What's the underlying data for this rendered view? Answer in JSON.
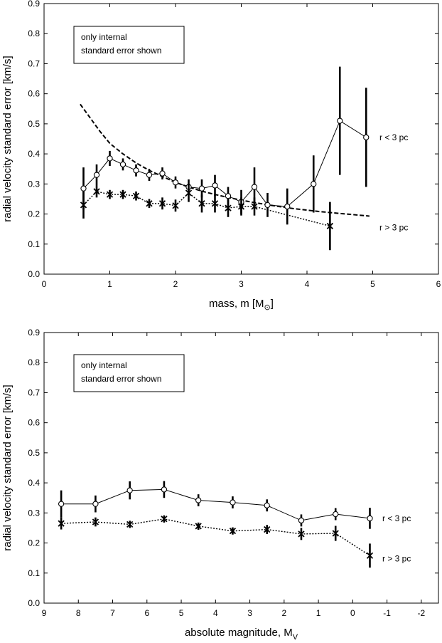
{
  "chart_data": [
    {
      "type": "line",
      "xlabel": "mass, m  [M",
      "xlabel_unit": "⊙",
      "xlabel_close": "]",
      "ylabel": "radial velocity standard error  [km/s]",
      "xlim": [
        0,
        6
      ],
      "ylim": [
        0,
        0.9
      ],
      "x_reversed": false,
      "x_ticks": [
        0,
        1,
        2,
        3,
        4,
        5,
        6
      ],
      "x_tick_labels": [
        "0",
        "1",
        "2",
        "3",
        "4",
        "5",
        "6"
      ],
      "y_ticks": [
        0,
        0.1,
        0.2,
        0.3,
        0.4,
        0.5,
        0.6,
        0.7,
        0.8,
        0.9
      ],
      "y_tick_labels": [
        "0.0",
        "0.1",
        "0.2",
        "0.3",
        "0.4",
        "0.5",
        "0.6",
        "0.7",
        "0.8",
        "0.9"
      ],
      "note_lines": [
        "only internal",
        "standard error shown"
      ],
      "series": [
        {
          "name": "r < 3 pc",
          "marker": "circle",
          "line_style": "solid",
          "x": [
            0.6,
            0.8,
            1.0,
            1.2,
            1.4,
            1.6,
            1.8,
            2.0,
            2.2,
            2.4,
            2.6,
            2.8,
            3.0,
            3.2,
            3.4,
            3.7,
            4.1,
            4.5,
            4.9
          ],
          "y": [
            0.285,
            0.33,
            0.385,
            0.365,
            0.345,
            0.33,
            0.335,
            0.305,
            0.29,
            0.285,
            0.295,
            0.26,
            0.24,
            0.29,
            0.23,
            0.225,
            0.3,
            0.51,
            0.455
          ],
          "err": [
            0.07,
            0.035,
            0.025,
            0.02,
            0.02,
            0.02,
            0.02,
            0.02,
            0.025,
            0.03,
            0.035,
            0.03,
            0.04,
            0.065,
            0.04,
            0.06,
            0.095,
            0.18,
            0.165
          ]
        },
        {
          "name": "r > 3 pc",
          "marker": "asterisk",
          "line_style": "dotted",
          "x": [
            0.6,
            0.8,
            1.0,
            1.2,
            1.4,
            1.6,
            1.8,
            2.0,
            2.2,
            2.4,
            2.6,
            2.8,
            3.0,
            3.2,
            4.35
          ],
          "y": [
            0.23,
            0.275,
            0.265,
            0.265,
            0.26,
            0.235,
            0.235,
            0.228,
            0.27,
            0.235,
            0.235,
            0.22,
            0.225,
            0.225,
            0.16
          ],
          "err": [
            0.045,
            0.02,
            0.015,
            0.015,
            0.015,
            0.015,
            0.02,
            0.02,
            0.03,
            0.03,
            0.03,
            0.03,
            0.03,
            0.03,
            0.08
          ]
        }
      ],
      "fit_curve": {
        "line_style": "dashed",
        "x": [
          0.55,
          0.7,
          0.85,
          1.0,
          1.2,
          1.4,
          1.6,
          1.8,
          2.0,
          2.2,
          2.4,
          2.6,
          2.8,
          3.0,
          3.2,
          3.4,
          3.6,
          3.8,
          4.0,
          4.2,
          4.4,
          4.6,
          4.8,
          4.95
        ],
        "y": [
          0.565,
          0.52,
          0.475,
          0.435,
          0.4,
          0.37,
          0.345,
          0.325,
          0.305,
          0.29,
          0.276,
          0.265,
          0.255,
          0.246,
          0.238,
          0.231,
          0.224,
          0.218,
          0.213,
          0.208,
          0.204,
          0.2,
          0.196,
          0.193
        ]
      }
    },
    {
      "type": "line",
      "xlabel": "absolute magnitude, M",
      "xlabel_sub": "V",
      "ylabel": "radial velocity standard error  [km/s]",
      "xlim": [
        9,
        -2.5
      ],
      "ylim": [
        0,
        0.9
      ],
      "x_reversed": true,
      "x_ticks": [
        9,
        8,
        7,
        6,
        5,
        4,
        3,
        2,
        1,
        0,
        -1,
        -2
      ],
      "x_tick_labels": [
        "9",
        "8",
        "7",
        "6",
        "5",
        "4",
        "3",
        "2",
        "1",
        "0",
        "-1",
        "-2"
      ],
      "y_ticks": [
        0,
        0.1,
        0.2,
        0.3,
        0.4,
        0.5,
        0.6,
        0.7,
        0.8,
        0.9
      ],
      "y_tick_labels": [
        "0.0",
        "0.1",
        "0.2",
        "0.3",
        "0.4",
        "0.5",
        "0.6",
        "0.7",
        "0.8",
        "0.9"
      ],
      "note_lines": [
        "only internal",
        "standard error shown"
      ],
      "series": [
        {
          "name": "r < 3 pc",
          "marker": "circle",
          "line_style": "solid",
          "x": [
            8.5,
            7.5,
            6.5,
            5.5,
            4.5,
            3.5,
            2.5,
            1.5,
            0.5,
            -0.5
          ],
          "y": [
            0.33,
            0.33,
            0.375,
            0.378,
            0.342,
            0.335,
            0.325,
            0.275,
            0.296,
            0.282
          ],
          "err": [
            0.045,
            0.028,
            0.03,
            0.028,
            0.02,
            0.02,
            0.02,
            0.02,
            0.02,
            0.035
          ]
        },
        {
          "name": "r > 3 pc",
          "marker": "asterisk",
          "line_style": "dotted",
          "x": [
            8.5,
            7.5,
            6.5,
            5.5,
            4.5,
            3.5,
            2.5,
            1.5,
            0.5,
            -0.5
          ],
          "y": [
            0.265,
            0.27,
            0.262,
            0.28,
            0.256,
            0.24,
            0.245,
            0.23,
            0.232,
            0.158
          ],
          "err": [
            0.02,
            0.015,
            0.012,
            0.012,
            0.012,
            0.012,
            0.015,
            0.02,
            0.025,
            0.04
          ]
        }
      ]
    }
  ]
}
